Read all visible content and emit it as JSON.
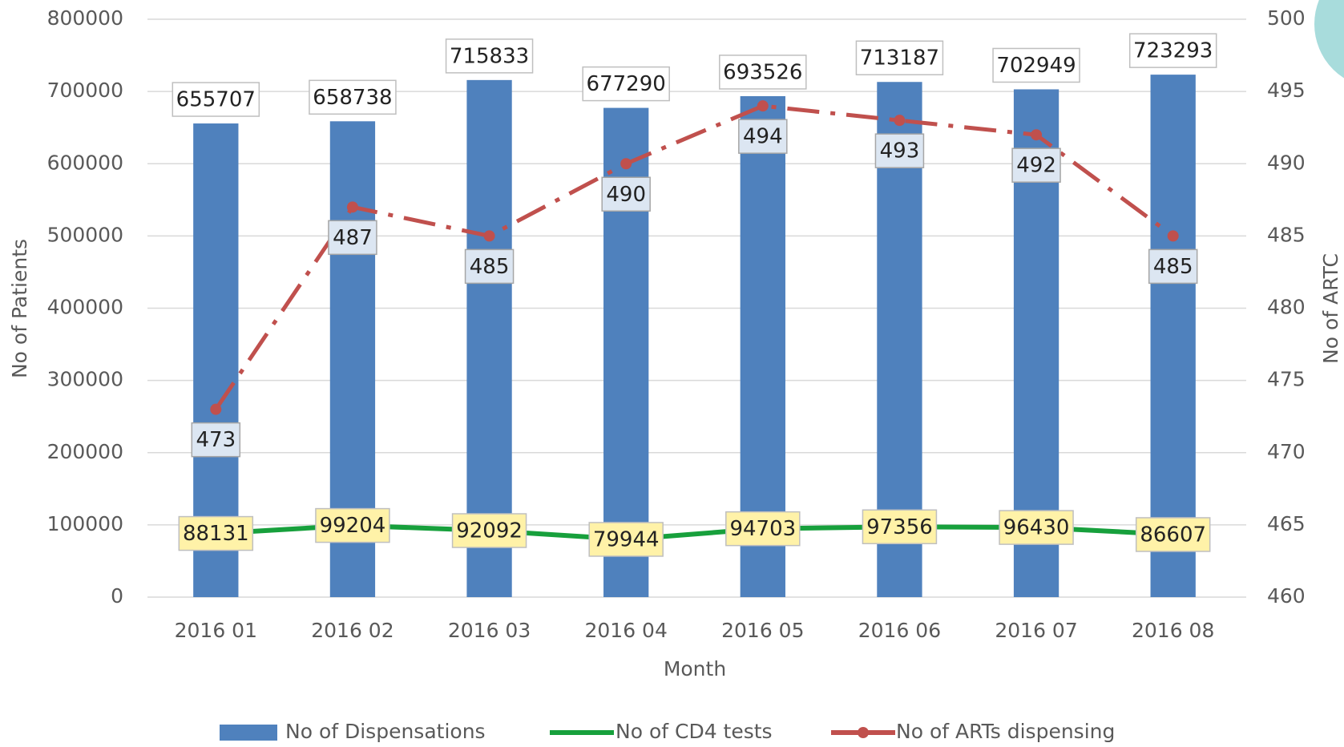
{
  "chart_data": {
    "type": "bar",
    "categories": [
      "2016 01",
      "2016 02",
      "2016 03",
      "2016 04",
      "2016 05",
      "2016 06",
      "2016 07",
      "2016 08"
    ],
    "x_label": "Month",
    "y_label": "No of Patients",
    "y2_label": "No of ARTC",
    "ylim": [
      0,
      800000
    ],
    "yticks": [
      0,
      100000,
      200000,
      300000,
      400000,
      500000,
      600000,
      700000,
      800000
    ],
    "y2lim": [
      460,
      500
    ],
    "y2ticks": [
      460,
      465,
      470,
      475,
      480,
      485,
      490,
      495,
      500
    ],
    "grid": true,
    "legend": "bottom",
    "series": [
      {
        "name": "No of Dispensations",
        "type": "bar",
        "color": "#4f81bd",
        "values": [
          655707,
          658738,
          715833,
          677290,
          693526,
          713187,
          702949,
          723293
        ]
      },
      {
        "name": "No of CD4 tests",
        "type": "line",
        "color": "#17a03c",
        "values": [
          88131,
          99204,
          92092,
          79944,
          94703,
          97356,
          96430,
          86607
        ]
      },
      {
        "name": "No of ARTs dispensing",
        "type": "line",
        "axis": "y2",
        "color": "#c0504d",
        "values": [
          473,
          487,
          485,
          490,
          494,
          493,
          492,
          485
        ]
      }
    ]
  }
}
